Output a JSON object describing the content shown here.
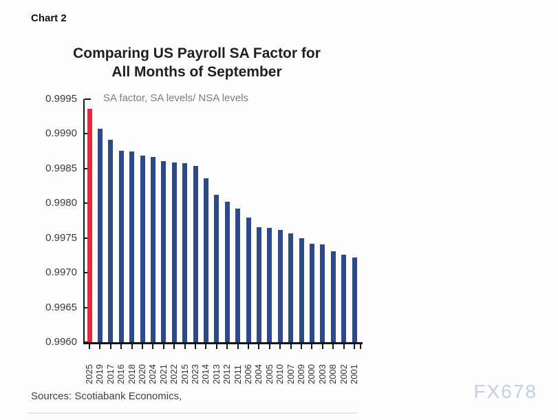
{
  "page": {
    "chart_label": "Chart 2",
    "sources": "Sources: Scotiabank Economics,",
    "watermark": "FX678"
  },
  "chart_data": {
    "type": "bar",
    "title": "Comparing US Payroll SA Factor for All Months of September",
    "title_line1": "Comparing US Payroll SA Factor for",
    "title_line2": "All Months of September",
    "subtitle": "SA factor, SA levels/ NSA levels",
    "xlabel": "",
    "ylabel": "SA factor",
    "categories": [
      "2025",
      "2019",
      "2017",
      "2016",
      "2018",
      "2020",
      "2024",
      "2021",
      "2022",
      "2015",
      "2023",
      "2014",
      "2013",
      "2012",
      "2011",
      "2006",
      "2004",
      "2005",
      "2010",
      "2007",
      "2009",
      "2000",
      "2003",
      "2008",
      "2002",
      "2001"
    ],
    "values": [
      0.99936,
      0.99907,
      0.99892,
      0.99876,
      0.99875,
      0.99869,
      0.99867,
      0.99861,
      0.99859,
      0.99858,
      0.99854,
      0.99836,
      0.99812,
      0.99802,
      0.99792,
      0.9978,
      0.99766,
      0.99765,
      0.99762,
      0.99757,
      0.9975,
      0.99742,
      0.99741,
      0.99731,
      0.99726,
      0.99722
    ],
    "ylim": [
      0.996,
      0.9995
    ],
    "y_tick_labels": [
      "0.9995",
      "0.9990",
      "0.9985",
      "0.9980",
      "0.9975",
      "0.9970",
      "0.9965",
      "0.9960"
    ],
    "grid": "off",
    "highlight_category": "2025",
    "highlight_color": "#ee2440",
    "bar_color": "#2c4a8a"
  }
}
